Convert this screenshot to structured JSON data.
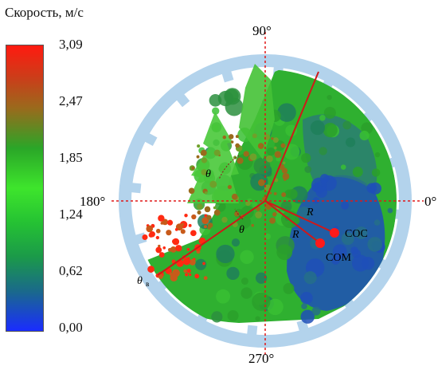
{
  "colorbar": {
    "title": "Скорость, м/с",
    "ticks": [
      "3,09",
      "2,47",
      "1,85",
      "1,24",
      "0,62",
      "0,00"
    ],
    "colors": [
      "#ff1a10",
      "#b05a1c",
      "#2bbf1e",
      "#33e02a",
      "#1e8c4a",
      "#1a2cff"
    ]
  },
  "angles": {
    "top": "90°",
    "left": "180°",
    "right": "0°",
    "bottom": "270°"
  },
  "labels": {
    "theta_upper": "θ",
    "theta_middle": "θ",
    "theta_lower": "θ",
    "theta_lower_sub": "в",
    "r_upper": "R",
    "r_lower": "R",
    "coc": "COC",
    "com": "COM"
  }
}
